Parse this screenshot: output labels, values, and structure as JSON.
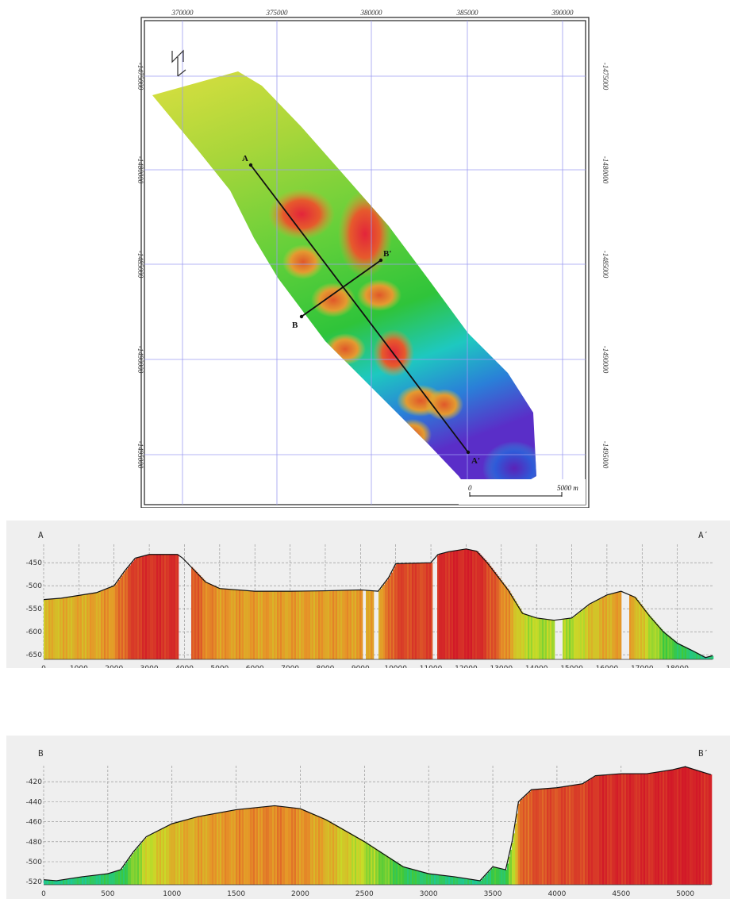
{
  "map": {
    "x_ticks": [
      "370000",
      "375000",
      "380000",
      "385000",
      "390000"
    ],
    "y_ticks": [
      "-1475000",
      "-1480000",
      "-1485000",
      "-1490000",
      "-1495000"
    ],
    "north_arrow_icon": "north-arrow-icon",
    "scale_bar": {
      "start_label": "0",
      "end_label": "5000 m"
    },
    "profile_lines": [
      {
        "start_label": "A",
        "end_label": "A'"
      },
      {
        "start_label": "B",
        "end_label": "B'"
      }
    ],
    "colors": {
      "deep": "#4b1fb8",
      "mid": "#2fc43a",
      "shallow": "#e0203a"
    }
  },
  "profile_a": {
    "left_label": "A",
    "right_label": "A′",
    "x_ticks": [
      "0",
      "1000",
      "2000",
      "3000",
      "4000",
      "5000",
      "6000",
      "7000",
      "8000",
      "9000",
      "10000",
      "11000",
      "12000",
      "13000",
      "14000",
      "15000",
      "16000",
      "17000",
      "18000"
    ],
    "y_ticks": [
      "-450",
      "-500",
      "-550",
      "-600",
      "-650"
    ]
  },
  "profile_b": {
    "left_label": "B",
    "right_label": "B′",
    "x_ticks": [
      "0",
      "500",
      "1000",
      "1500",
      "2000",
      "2500",
      "3000",
      "3500",
      "4000",
      "4500",
      "5000"
    ],
    "y_ticks": [
      "-420",
      "-440",
      "-460",
      "-480",
      "-500",
      "-520"
    ]
  },
  "chart_data": [
    {
      "type": "area",
      "x": [
        0,
        500,
        1000,
        1500,
        2000,
        2300,
        2600,
        3000,
        3500,
        3800,
        3950,
        4200,
        4600,
        5000,
        6000,
        7000,
        8000,
        9000,
        9500,
        9800,
        10000,
        11000,
        11200,
        11500,
        12000,
        12300,
        12600,
        12800,
        13200,
        13600,
        14000,
        14500,
        15000,
        15500,
        16000,
        16400,
        16800,
        17200,
        17600,
        18000,
        18400,
        18800,
        19000
      ],
      "y": [
        -530,
        -527,
        -521,
        -515,
        -500,
        -468,
        -440,
        -432,
        -432,
        -432,
        -440,
        -460,
        -492,
        -506,
        -512,
        -512,
        -511,
        -509,
        -512,
        -482,
        -452,
        -450,
        -432,
        -426,
        -420,
        -425,
        -450,
        -470,
        -510,
        -560,
        -570,
        -575,
        -570,
        -540,
        -520,
        -512,
        -525,
        -565,
        -600,
        -625,
        -640,
        -656,
        -652
      ],
      "xlim": [
        0,
        19000
      ],
      "ylim": [
        -660,
        -410
      ],
      "grid": true
    },
    {
      "type": "area",
      "x": [
        0,
        100,
        300,
        500,
        600,
        700,
        800,
        1000,
        1200,
        1500,
        1800,
        2000,
        2200,
        2500,
        2800,
        3000,
        3200,
        3400,
        3500,
        3600,
        3650,
        3700,
        3800,
        4000,
        4200,
        4300,
        4500,
        4700,
        4900,
        5000,
        5200
      ],
      "y": [
        -518,
        -519,
        -515,
        -512,
        -508,
        -490,
        -475,
        -462,
        -455,
        -448,
        -444,
        -447,
        -458,
        -480,
        -505,
        -512,
        -515,
        -519,
        -505,
        -508,
        -480,
        -440,
        -428,
        -426,
        -422,
        -414,
        -412,
        -412,
        -408,
        -405,
        -413
      ],
      "xlim": [
        0,
        5200
      ],
      "ylim": [
        -523,
        -404
      ],
      "grid": true
    }
  ]
}
